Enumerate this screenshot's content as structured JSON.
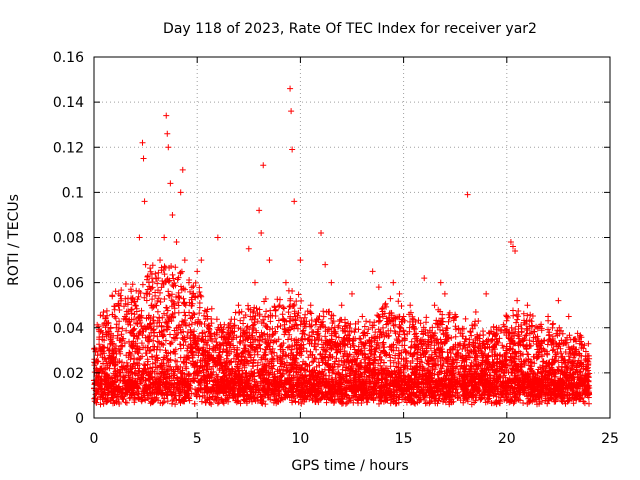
{
  "chart_data": {
    "type": "scatter",
    "title": "Day 118 of 2023, Rate Of TEC Index for receiver yar2",
    "xlabel": "GPS time / hours",
    "ylabel": "ROTI / TECUs",
    "xlim": [
      0,
      25
    ],
    "ylim": [
      0,
      0.16
    ],
    "x_ticks": [
      0,
      5,
      10,
      15,
      20,
      25
    ],
    "y_ticks": [
      0,
      0.02,
      0.04,
      0.06,
      0.08,
      0.1,
      0.12,
      0.14,
      0.16
    ],
    "x_tick_labels": [
      "0",
      "5",
      "10",
      "15",
      "20",
      "25"
    ],
    "y_tick_labels": [
      "0",
      "0.02",
      "0.04",
      "0.06",
      "0.08",
      "0.1",
      "0.12",
      "0.14",
      "0.16"
    ],
    "grid": true,
    "marker": "plus",
    "color": "#ff0000",
    "series": [
      {
        "x": [
          0.1,
          0.3,
          0.5,
          0.8,
          1.0,
          1.2,
          1.5,
          1.8,
          2.0,
          2.2,
          2.35,
          2.4,
          2.45,
          2.5,
          2.6,
          2.8,
          3.0,
          3.2,
          3.4,
          3.5,
          3.55,
          3.6,
          3.7,
          3.8,
          4.0,
          4.2,
          4.3,
          4.4,
          4.6,
          4.8,
          5.0,
          5.2,
          5.5,
          6.0,
          6.5,
          7.0,
          7.5,
          7.8,
          8.0,
          8.1,
          8.2,
          8.5,
          9.0,
          9.3,
          9.5,
          9.55,
          9.6,
          9.7,
          10.0,
          10.5,
          11.0,
          11.2,
          11.5,
          12.0,
          12.5,
          13.0,
          13.5,
          13.8,
          14.0,
          14.5,
          14.8,
          15.0,
          15.5,
          16.0,
          16.5,
          16.8,
          17.0,
          17.5,
          18.0,
          18.1,
          18.5,
          19.0,
          19.5,
          20.0,
          20.2,
          20.3,
          20.4,
          20.5,
          21.0,
          21.5,
          22.0,
          22.5,
          23.0,
          23.5,
          23.9
        ],
        "y": [
          0.022,
          0.031,
          0.042,
          0.035,
          0.048,
          0.055,
          0.045,
          0.038,
          0.05,
          0.08,
          0.122,
          0.115,
          0.096,
          0.068,
          0.055,
          0.05,
          0.062,
          0.07,
          0.08,
          0.134,
          0.126,
          0.12,
          0.104,
          0.09,
          0.078,
          0.1,
          0.11,
          0.07,
          0.06,
          0.055,
          0.065,
          0.07,
          0.045,
          0.08,
          0.04,
          0.05,
          0.075,
          0.06,
          0.092,
          0.082,
          0.112,
          0.07,
          0.05,
          0.06,
          0.146,
          0.136,
          0.119,
          0.096,
          0.07,
          0.05,
          0.082,
          0.068,
          0.06,
          0.05,
          0.055,
          0.045,
          0.065,
          0.058,
          0.045,
          0.06,
          0.055,
          0.045,
          0.04,
          0.062,
          0.05,
          0.06,
          0.055,
          0.045,
          0.035,
          0.099,
          0.047,
          0.055,
          0.04,
          0.045,
          0.078,
          0.076,
          0.074,
          0.052,
          0.05,
          0.04,
          0.045,
          0.052,
          0.045,
          0.035,
          0.025
        ]
      }
    ]
  }
}
